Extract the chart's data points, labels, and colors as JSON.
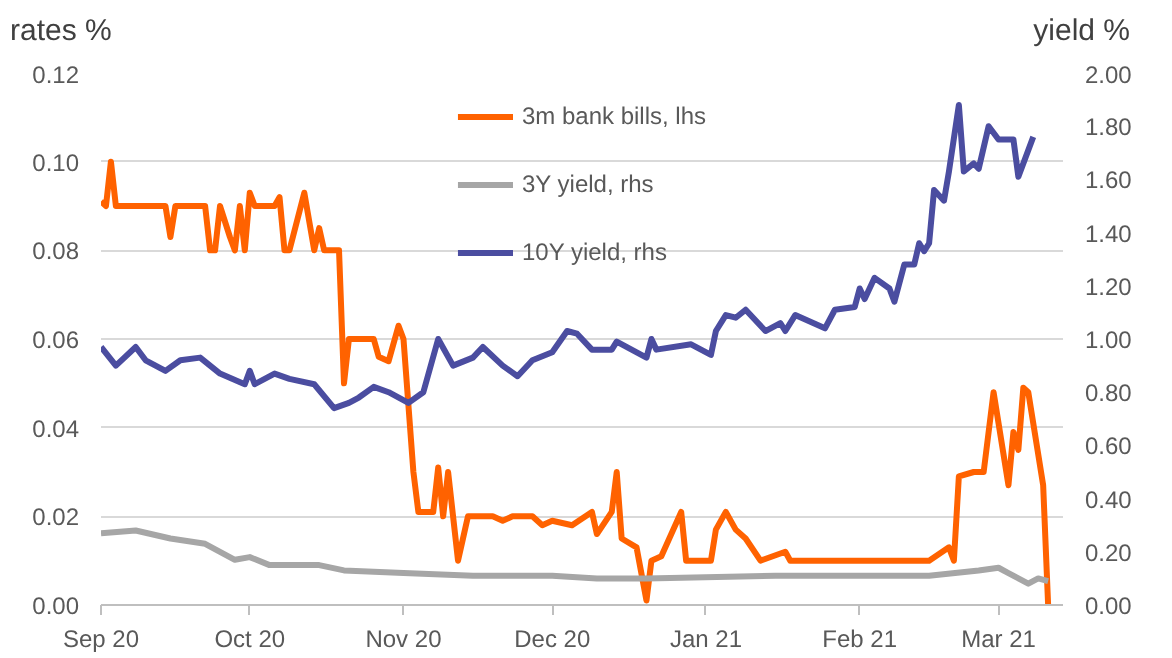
{
  "chart_data": {
    "type": "line",
    "ylabel": "rates %",
    "y2label": "yield %",
    "xlim": [
      "2020-09-01",
      "2021-03-14"
    ],
    "xticks": [
      {
        "value": "2020-09-01",
        "label": "Sep 20"
      },
      {
        "value": "2020-10-01",
        "label": "Oct 20"
      },
      {
        "value": "2020-11-01",
        "label": "Nov 20"
      },
      {
        "value": "2020-12-01",
        "label": "Dec 20"
      },
      {
        "value": "2021-01-01",
        "label": "Jan 21"
      },
      {
        "value": "2021-02-01",
        "label": "Feb 21"
      },
      {
        "value": "2021-03-01",
        "label": "Mar 21"
      }
    ],
    "ylim": [
      0,
      0.12
    ],
    "yticks": [
      {
        "value": 0,
        "label": "0.00"
      },
      {
        "value": 0.02,
        "label": "0.02"
      },
      {
        "value": 0.04,
        "label": "0.04"
      },
      {
        "value": 0.06,
        "label": "0.06"
      },
      {
        "value": 0.08,
        "label": "0.08"
      },
      {
        "value": 0.1,
        "label": "0.10"
      },
      {
        "value": 0.12,
        "label": "0.12"
      }
    ],
    "y2lim": [
      0,
      2.0
    ],
    "y2ticks": [
      {
        "value": 0,
        "label": "0.00"
      },
      {
        "value": 0.2,
        "label": "0.20"
      },
      {
        "value": 0.4,
        "label": "0.40"
      },
      {
        "value": 0.6,
        "label": "0.60"
      },
      {
        "value": 0.8,
        "label": "0.80"
      },
      {
        "value": 1.0,
        "label": "1.00"
      },
      {
        "value": 1.2,
        "label": "1.20"
      },
      {
        "value": 1.4,
        "label": "1.40"
      },
      {
        "value": 1.6,
        "label": "1.60"
      },
      {
        "value": 1.8,
        "label": "1.80"
      },
      {
        "value": 2.0,
        "label": "2.00"
      }
    ],
    "grid": "y",
    "legend": "top",
    "marker": "none",
    "line_style": "solid",
    "series": [
      {
        "name": "3m bank bills, lhs",
        "color": "#ff6200",
        "x": [
          "2020-09-01",
          "2020-09-02",
          "2020-09-03",
          "2020-09-04",
          "2020-09-14",
          "2020-09-15",
          "2020-09-16",
          "2020-09-22",
          "2020-09-23",
          "2020-09-24",
          "2020-09-25",
          "2020-09-27",
          "2020-09-28",
          "2020-09-29",
          "2020-09-30",
          "2020-10-01",
          "2020-10-02",
          "2020-10-06",
          "2020-10-07",
          "2020-10-08",
          "2020-10-09",
          "2020-10-12",
          "2020-10-14",
          "2020-10-15",
          "2020-10-16",
          "2020-10-19",
          "2020-10-20",
          "2020-10-21",
          "2020-10-26",
          "2020-10-27",
          "2020-10-29",
          "2020-10-31",
          "2020-11-01",
          "2020-11-03",
          "2020-11-04",
          "2020-11-07",
          "2020-11-08",
          "2020-11-09",
          "2020-11-10",
          "2020-11-11",
          "2020-11-12",
          "2020-11-13",
          "2020-11-14",
          "2020-11-19",
          "2020-11-21",
          "2020-11-23",
          "2020-11-27",
          "2020-11-29",
          "2020-12-01",
          "2020-12-05",
          "2020-12-09",
          "2020-12-10",
          "2020-12-13",
          "2020-12-14",
          "2020-12-15",
          "2020-12-18",
          "2020-12-20",
          "2020-12-21",
          "2020-12-23",
          "2020-12-27",
          "2020-12-28",
          "2021-01-02",
          "2021-01-03",
          "2021-01-05",
          "2021-01-07",
          "2021-01-09",
          "2021-01-12",
          "2021-01-17",
          "2021-01-18",
          "2021-01-26",
          "2021-02-06",
          "2021-02-15",
          "2021-02-19",
          "2021-02-20",
          "2021-02-21",
          "2021-02-24",
          "2021-02-26",
          "2021-02-28",
          "2021-03-03",
          "2021-03-04",
          "2021-03-05",
          "2021-03-06",
          "2021-03-07",
          "2021-03-10",
          "2021-03-11"
        ],
        "values": [
          0.091,
          0.09,
          0.1,
          0.09,
          0.09,
          0.083,
          0.09,
          0.09,
          0.08,
          0.08,
          0.09,
          0.083,
          0.08,
          0.09,
          0.08,
          0.093,
          0.09,
          0.09,
          0.092,
          0.08,
          0.08,
          0.093,
          0.08,
          0.085,
          0.08,
          0.08,
          0.05,
          0.06,
          0.06,
          0.056,
          0.055,
          0.063,
          0.06,
          0.03,
          0.021,
          0.021,
          0.031,
          0.02,
          0.03,
          0.02,
          0.01,
          0.015,
          0.02,
          0.02,
          0.019,
          0.02,
          0.02,
          0.018,
          0.019,
          0.018,
          0.021,
          0.016,
          0.021,
          0.03,
          0.015,
          0.013,
          0.001,
          0.01,
          0.011,
          0.021,
          0.01,
          0.01,
          0.017,
          0.021,
          0.017,
          0.015,
          0.01,
          0.012,
          0.01,
          0.01,
          0.01,
          0.01,
          0.013,
          0.01,
          0.029,
          0.03,
          0.03,
          0.048,
          0.027,
          0.039,
          0.035,
          0.049,
          0.048,
          0.027,
          0.0
        ]
      },
      {
        "name": "3Y yield, rhs",
        "color": "#a6a6a6",
        "axis": "y2",
        "x": [
          "2020-09-01",
          "2020-09-08",
          "2020-09-15",
          "2020-09-22",
          "2020-09-28",
          "2020-10-01",
          "2020-10-05",
          "2020-10-15",
          "2020-10-20",
          "2020-11-01",
          "2020-11-15",
          "2020-12-01",
          "2020-12-10",
          "2020-12-20",
          "2021-01-15",
          "2021-02-15",
          "2021-02-25",
          "2021-03-01",
          "2021-03-03",
          "2021-03-07",
          "2021-03-09",
          "2021-03-11"
        ],
        "values": [
          0.27,
          0.28,
          0.25,
          0.23,
          0.17,
          0.18,
          0.15,
          0.15,
          0.13,
          0.12,
          0.11,
          0.11,
          0.1,
          0.1,
          0.11,
          0.11,
          0.13,
          0.14,
          0.12,
          0.08,
          0.1,
          0.09
        ]
      },
      {
        "name": "10Y yield, rhs",
        "color": "#4b4da0",
        "axis": "y2",
        "x": [
          "2020-09-01",
          "2020-09-04",
          "2020-09-08",
          "2020-09-10",
          "2020-09-14",
          "2020-09-17",
          "2020-09-21",
          "2020-09-25",
          "2020-09-30",
          "2020-10-01",
          "2020-10-02",
          "2020-10-06",
          "2020-10-09",
          "2020-10-14",
          "2020-10-18",
          "2020-10-21",
          "2020-10-23",
          "2020-10-26",
          "2020-10-29",
          "2020-11-02",
          "2020-11-05",
          "2020-11-08",
          "2020-11-11",
          "2020-11-15",
          "2020-11-17",
          "2020-11-21",
          "2020-11-24",
          "2020-11-27",
          "2020-12-01",
          "2020-12-04",
          "2020-12-06",
          "2020-12-09",
          "2020-12-13",
          "2020-12-14",
          "2020-12-17",
          "2020-12-20",
          "2020-12-21",
          "2020-12-22",
          "2020-12-29",
          "2021-01-02",
          "2021-01-03",
          "2021-01-05",
          "2021-01-07",
          "2021-01-09",
          "2021-01-13",
          "2021-01-16",
          "2021-01-17",
          "2021-01-19",
          "2021-01-25",
          "2021-01-27",
          "2021-01-31",
          "2021-02-01",
          "2021-02-02",
          "2021-02-04",
          "2021-02-07",
          "2021-02-08",
          "2021-02-10",
          "2021-02-12",
          "2021-02-13",
          "2021-02-14",
          "2021-02-15",
          "2021-02-16",
          "2021-02-18",
          "2021-02-19",
          "2021-02-21",
          "2021-02-22",
          "2021-02-24",
          "2021-02-25",
          "2021-02-27",
          "2021-03-01",
          "2021-03-04",
          "2021-03-05",
          "2021-03-08"
        ],
        "values": [
          0.97,
          0.9,
          0.97,
          0.92,
          0.88,
          0.92,
          0.93,
          0.87,
          0.83,
          0.88,
          0.83,
          0.87,
          0.85,
          0.83,
          0.74,
          0.76,
          0.78,
          0.82,
          0.8,
          0.76,
          0.8,
          1.0,
          0.9,
          0.93,
          0.97,
          0.9,
          0.86,
          0.92,
          0.95,
          1.03,
          1.02,
          0.96,
          0.96,
          0.99,
          0.96,
          0.93,
          1.0,
          0.96,
          0.98,
          0.94,
          1.03,
          1.09,
          1.08,
          1.11,
          1.03,
          1.06,
          1.03,
          1.09,
          1.04,
          1.11,
          1.12,
          1.19,
          1.15,
          1.23,
          1.19,
          1.14,
          1.28,
          1.28,
          1.36,
          1.33,
          1.36,
          1.56,
          1.52,
          1.63,
          1.88,
          1.63,
          1.66,
          1.64,
          1.8,
          1.75,
          1.75,
          1.61,
          1.76
        ]
      }
    ]
  }
}
